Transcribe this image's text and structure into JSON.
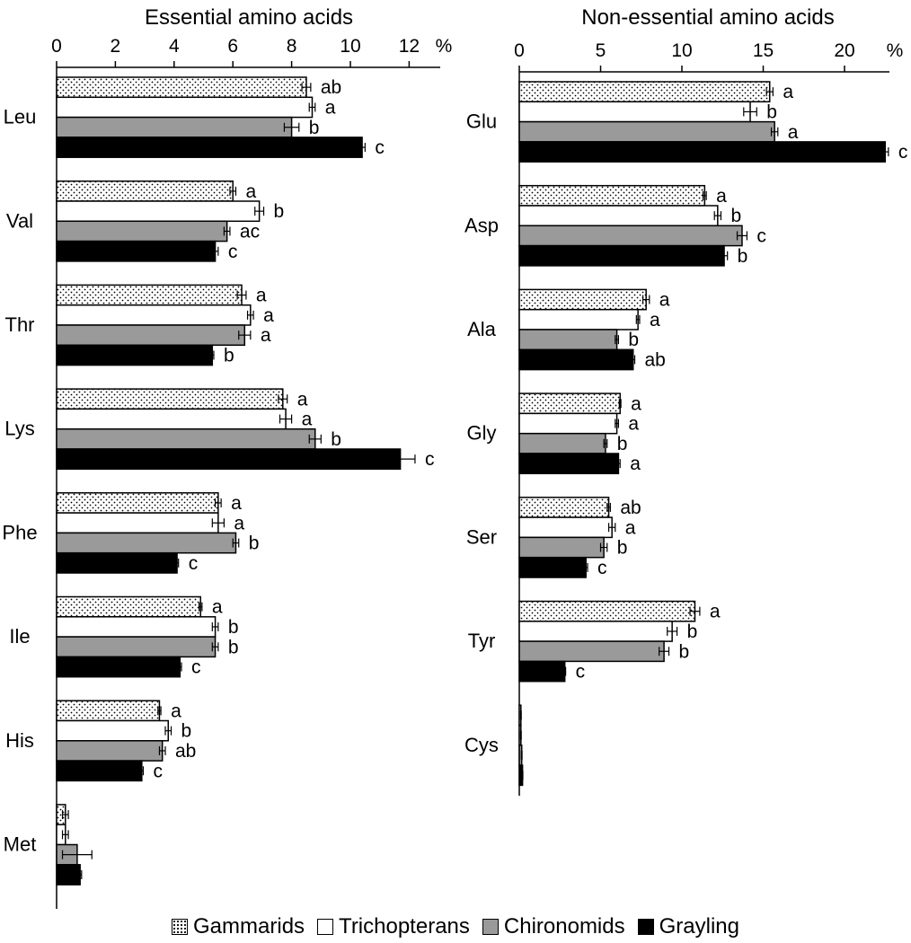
{
  "chart_data": [
    {
      "type": "bar",
      "orientation": "horizontal",
      "title": "Essential amino acids",
      "unit": "%",
      "xlim": [
        0,
        13
      ],
      "ticks": [
        0,
        2,
        4,
        6,
        8,
        10,
        12
      ],
      "categories": [
        "Leu",
        "Val",
        "Thr",
        "Lys",
        "Phe",
        "Ile",
        "His",
        "Met"
      ],
      "series": [
        {
          "name": "Gammarids",
          "values": [
            8.5,
            6.0,
            6.3,
            7.7,
            5.5,
            4.9,
            3.5,
            0.3
          ],
          "errors": [
            0.15,
            0.1,
            0.15,
            0.15,
            0.1,
            0.05,
            0.05,
            0.1
          ],
          "labels": [
            "ab",
            "a",
            "a",
            "a",
            "a",
            "a",
            "a",
            ""
          ]
        },
        {
          "name": "Trichopterans",
          "values": [
            8.7,
            6.9,
            6.6,
            7.8,
            5.5,
            5.4,
            3.8,
            0.3
          ],
          "errors": [
            0.1,
            0.15,
            0.1,
            0.2,
            0.2,
            0.1,
            0.1,
            0.1
          ],
          "labels": [
            "a",
            "b",
            "a",
            "a",
            "a",
            "b",
            "b",
            ""
          ]
        },
        {
          "name": "Chironomids",
          "values": [
            8.0,
            5.8,
            6.4,
            8.8,
            6.1,
            5.4,
            3.6,
            0.7
          ],
          "errors": [
            0.25,
            0.1,
            0.2,
            0.2,
            0.1,
            0.1,
            0.1,
            0.5
          ],
          "labels": [
            "b",
            "ac",
            "a",
            "b",
            "b",
            "b",
            "ab",
            ""
          ]
        },
        {
          "name": "Grayling",
          "values": [
            10.4,
            5.4,
            5.3,
            11.7,
            4.1,
            4.2,
            2.9,
            0.8
          ],
          "errors": [
            0.1,
            0.1,
            0.05,
            0.5,
            0.05,
            0.05,
            0.05,
            0.05
          ],
          "labels": [
            "c",
            "c",
            "b",
            "c",
            "c",
            "c",
            "c",
            ""
          ]
        }
      ]
    },
    {
      "type": "bar",
      "orientation": "horizontal",
      "title": "Non-essential amino acids",
      "unit": "%",
      "xlim": [
        0,
        22.5
      ],
      "ticks": [
        0,
        5,
        10,
        15,
        20
      ],
      "categories": [
        "Glu",
        "Asp",
        "Ala",
        "Gly",
        "Ser",
        "Tyr",
        "Cys"
      ],
      "series": [
        {
          "name": "Gammarids",
          "values": [
            15.4,
            11.4,
            7.8,
            6.2,
            5.5,
            10.8,
            0.1
          ],
          "errors": [
            0.2,
            0.1,
            0.2,
            0.05,
            0.1,
            0.3,
            0.02
          ],
          "labels": [
            "a",
            "a",
            "a",
            "a",
            "ab",
            "a",
            ""
          ]
        },
        {
          "name": "Trichopterans",
          "values": [
            14.2,
            12.2,
            7.3,
            6.0,
            5.7,
            9.4,
            0.1
          ],
          "errors": [
            0.4,
            0.2,
            0.1,
            0.1,
            0.2,
            0.3,
            0.02
          ],
          "labels": [
            "b",
            "b",
            "a",
            "a",
            "a",
            "b",
            ""
          ]
        },
        {
          "name": "Chironomids",
          "values": [
            15.7,
            13.7,
            6.0,
            5.3,
            5.2,
            8.9,
            0.15
          ],
          "errors": [
            0.2,
            0.3,
            0.1,
            0.1,
            0.2,
            0.3,
            0.02
          ],
          "labels": [
            "a",
            "c",
            "b",
            "b",
            "b",
            "b",
            ""
          ]
        },
        {
          "name": "Grayling",
          "values": [
            22.5,
            12.6,
            7.0,
            6.1,
            4.1,
            2.8,
            0.2
          ],
          "errors": [
            0.2,
            0.2,
            0.1,
            0.1,
            0.1,
            0.05,
            0.02
          ],
          "labels": [
            "c",
            "b",
            "ab",
            "a",
            "c",
            "c",
            ""
          ]
        }
      ]
    }
  ],
  "legend": {
    "items": [
      {
        "key": "gammarids",
        "label": "Gammarids",
        "fill": "dotted"
      },
      {
        "key": "trichopterans",
        "label": "Trichopterans",
        "fill": "#ffffff"
      },
      {
        "key": "chironomids",
        "label": "Chironomids",
        "fill": "#9a9a9a"
      },
      {
        "key": "grayling",
        "label": "Grayling",
        "fill": "#000000"
      }
    ]
  },
  "colors": {
    "gammarids": "dotted",
    "trichopterans": "#ffffff",
    "chironomids": "#9a9a9a",
    "grayling": "#000000"
  }
}
